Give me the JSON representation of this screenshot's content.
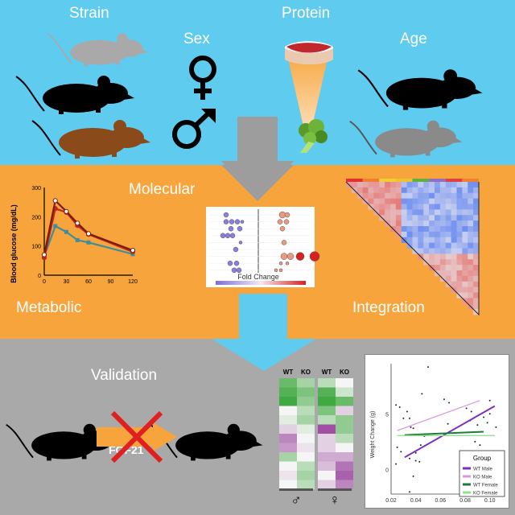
{
  "top": {
    "strain": "Strain",
    "sex": "Sex",
    "protein": "Protein",
    "age": "Age"
  },
  "middle": {
    "molecular": "Molecular",
    "metabolic": "Metabolic",
    "integration": "Integration",
    "fold_change_label": "Fold Change"
  },
  "bottom": {
    "validation": "Validation",
    "fgf21": "FGF21"
  },
  "colors": {
    "top_bg": "#5fcbef",
    "mid_bg": "#f7a43c",
    "bot_bg": "#a9a9a9",
    "arrow_gray": "#9d9d9d",
    "arrow_blue": "#5fcbef"
  },
  "chart_data": [
    {
      "type": "line",
      "ylabel": "Blood glucose (mg/dL)",
      "xlabel": "",
      "x": [
        0,
        15,
        30,
        45,
        60,
        120
      ],
      "xticks": [
        "0",
        "30",
        "60",
        "90",
        "120"
      ],
      "yticks": [
        "0",
        "100",
        "200",
        "300"
      ],
      "xlim": [
        0,
        120
      ],
      "ylim": [
        0,
        300
      ],
      "series": [
        {
          "name": "dark red",
          "color": "#7a1d12",
          "values": [
            70,
            255,
            218,
            178,
            142,
            85
          ]
        },
        {
          "name": "red",
          "color": "#c0271e",
          "values": [
            60,
            228,
            215,
            170,
            140,
            80
          ]
        },
        {
          "name": "teal",
          "color": "#3e8f9a",
          "values": [
            65,
            168,
            148,
            120,
            112,
            72
          ]
        }
      ]
    },
    {
      "type": "scatter",
      "ylabel": "Weight Change (g)",
      "xticks": [
        "0.02",
        "0.04",
        "0.06",
        "0.08",
        "0.10"
      ],
      "yticks": [
        "0",
        "5"
      ],
      "xlim": [
        0.02,
        0.108
      ],
      "ylim": [
        -2.2,
        9.5
      ],
      "legend_title": "Group",
      "legend_position": "bottom-right",
      "series": [
        {
          "name": "WT Male",
          "color": "#7b2fbf",
          "line": [
            [
              0.031,
              1.1
            ],
            [
              0.104,
              5.7
            ]
          ]
        },
        {
          "name": "KO Male",
          "color": "#d79ae0",
          "line": [
            [
              0.025,
              3.5
            ],
            [
              0.092,
              6.2
            ]
          ]
        },
        {
          "name": "WT Female",
          "color": "#1f7a3c",
          "line": [
            [
              0.031,
              3.1
            ],
            [
              0.095,
              3.4
            ]
          ]
        },
        {
          "name": "KO Female",
          "color": "#8fe08f",
          "line": [
            [
              0.025,
              3.05
            ],
            [
              0.104,
              3.05
            ]
          ]
        }
      ],
      "points": [
        [
          0.05,
          9.2
        ],
        [
          0.045,
          6.8
        ],
        [
          0.063,
          6.3
        ],
        [
          0.067,
          6.0
        ],
        [
          0.081,
          5.5
        ],
        [
          0.085,
          5.2
        ],
        [
          0.1,
          6.2
        ],
        [
          0.1,
          5.0
        ],
        [
          0.084,
          4.4
        ],
        [
          0.095,
          4.7
        ],
        [
          0.027,
          5.6
        ],
        [
          0.033,
          5.2
        ],
        [
          0.03,
          4.6
        ],
        [
          0.035,
          4.6
        ],
        [
          0.024,
          5.8
        ],
        [
          0.036,
          3.8
        ],
        [
          0.025,
          2.0
        ],
        [
          0.028,
          1.6
        ],
        [
          0.035,
          1.0
        ],
        [
          0.04,
          0.8
        ],
        [
          0.04,
          1.5
        ],
        [
          0.043,
          0.7
        ],
        [
          0.038,
          -0.6
        ],
        [
          0.035,
          -2.0
        ],
        [
          0.044,
          2.2
        ],
        [
          0.066,
          4.1
        ],
        [
          0.088,
          2.5
        ],
        [
          0.092,
          2.2
        ],
        [
          0.098,
          4.2
        ],
        [
          0.105,
          3.8
        ],
        [
          0.038,
          3.7
        ],
        [
          0.024,
          0.5
        ],
        [
          0.09,
          4.0
        ],
        [
          0.047,
          3.0
        ]
      ]
    },
    {
      "type": "heatmap",
      "columns": [
        "WT",
        "KO",
        "WT",
        "KO"
      ],
      "groups": [
        "♂",
        "♀"
      ],
      "values": [
        [
          0.7,
          0.4,
          0.3,
          0.0
        ],
        [
          0.8,
          0.6,
          0.8,
          0.2
        ],
        [
          0.9,
          0.5,
          0.9,
          0.7
        ],
        [
          0.0,
          0.3,
          0.6,
          -0.2
        ],
        [
          0.1,
          0.4,
          0.3,
          0.5
        ],
        [
          -0.2,
          0.1,
          -0.9,
          0.5
        ],
        [
          -0.6,
          0.0,
          -0.2,
          0.3
        ],
        [
          -0.5,
          -0.1,
          -0.2,
          0.0
        ],
        [
          0.4,
          0.0,
          -0.4,
          -0.4
        ],
        [
          0.0,
          0.3,
          -0.3,
          -0.7
        ],
        [
          -0.1,
          0.4,
          0.0,
          -0.8
        ],
        [
          0.0,
          0.3,
          -0.2,
          -0.6
        ]
      ]
    }
  ]
}
